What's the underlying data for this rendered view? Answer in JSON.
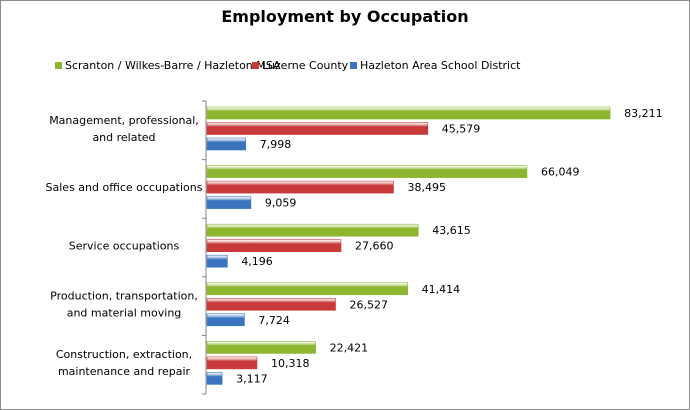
{
  "chart_data": {
    "type": "bar",
    "orientation": "horizontal",
    "title": "Employment by Occupation",
    "categories": [
      "Management, professional, and related",
      "Sales and office occupations",
      "Service occupations",
      "Production, transportation, and material moving",
      "Construction, extraction, maintenance and repair"
    ],
    "series": [
      {
        "name": "Scranton / Wilkes-Barre / Hazleton MSA",
        "color": "#8db52e",
        "values": [
          83211,
          66049,
          43615,
          41414,
          22421
        ]
      },
      {
        "name": "Luzerne County",
        "color": "#c8393a",
        "values": [
          45579,
          38495,
          27660,
          26527,
          10318
        ]
      },
      {
        "name": "Hazleton Area School District",
        "color": "#3a73be",
        "values": [
          7998,
          9059,
          4196,
          7724,
          3117
        ]
      }
    ],
    "data_labels": [
      [
        "83,211",
        "45,579",
        "7,998"
      ],
      [
        "66,049",
        "38,495",
        "9,059"
      ],
      [
        "43,615",
        "27,660",
        "4,196"
      ],
      [
        "41,414",
        "26,527",
        "7,724"
      ],
      [
        "22,421",
        "10,318",
        "3,117"
      ]
    ],
    "xlim": [
      0,
      90000
    ],
    "grid": false,
    "legend_position": "top"
  }
}
